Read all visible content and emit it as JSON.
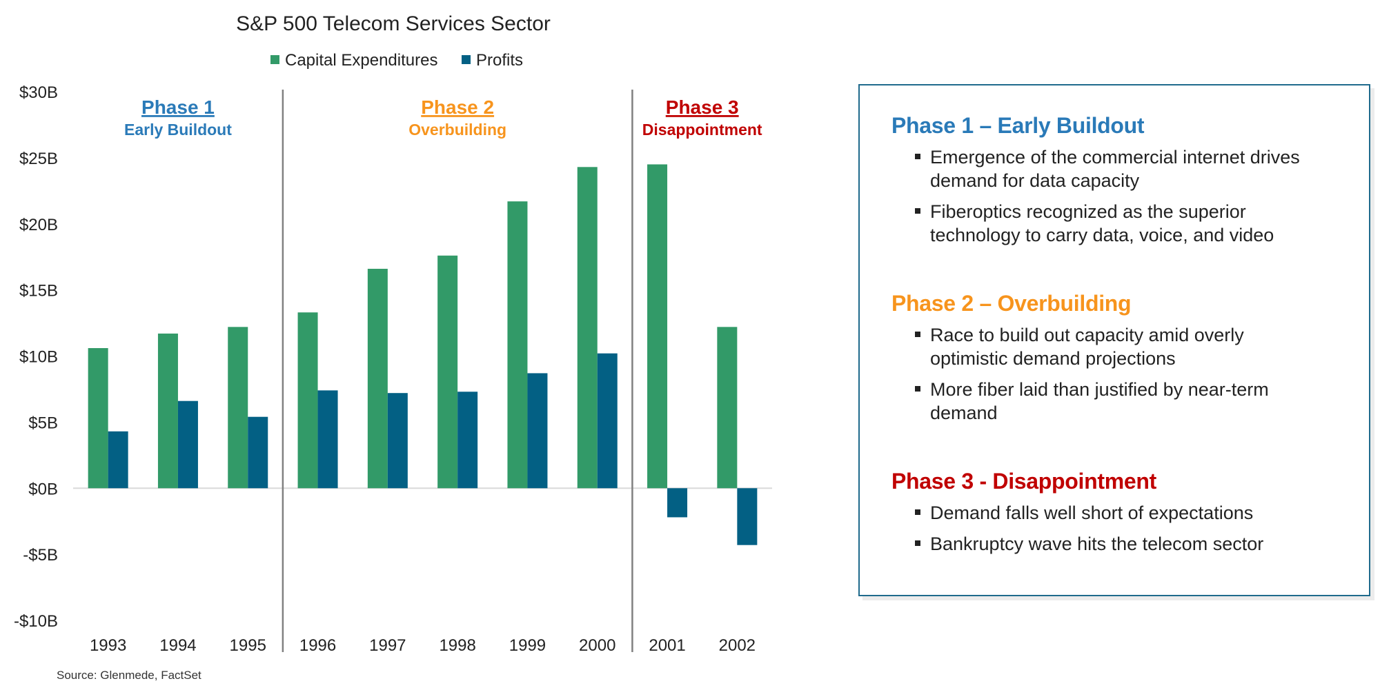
{
  "chart_data": {
    "type": "bar",
    "title": "S&P 500 Telecom Services Sector",
    "categories": [
      "1993",
      "1994",
      "1995",
      "1996",
      "1997",
      "1998",
      "1999",
      "2000",
      "2001",
      "2002"
    ],
    "series": [
      {
        "name": "Capital Expenditures",
        "color": "#329a68",
        "values": [
          10.6,
          11.7,
          12.2,
          13.3,
          16.6,
          17.6,
          21.7,
          24.3,
          24.5,
          12.2
        ]
      },
      {
        "name": "Profits",
        "color": "#036084",
        "values": [
          4.3,
          6.6,
          5.4,
          7.4,
          7.2,
          7.3,
          8.7,
          10.2,
          -2.2,
          -4.3
        ]
      }
    ],
    "ylim": [
      -10,
      30
    ],
    "yticks": [
      30,
      25,
      20,
      15,
      10,
      5,
      0,
      -5,
      -10
    ],
    "ytick_labels": [
      "$30B",
      "$25B",
      "$20B",
      "$15B",
      "$10B",
      "$5B",
      "$0B",
      "-$5B",
      "-$10B"
    ],
    "xlabel": "",
    "ylabel": "",
    "legend": "top",
    "grid": false,
    "phases": [
      {
        "title": "Phase 1",
        "subtitle": "Early Buildout",
        "color": "#2a7ab8",
        "start": 0,
        "end": 3
      },
      {
        "title": "Phase 2",
        "subtitle": "Overbuilding",
        "color": "#f7941d",
        "start": 3,
        "end": 8
      },
      {
        "title": "Phase 3",
        "subtitle": "Disappointment",
        "color": "#c00000",
        "start": 8,
        "end": 10
      }
    ]
  },
  "source": "Source: Glenmede, FactSet",
  "panel": {
    "sections": [
      {
        "heading": "Phase 1 – Early Buildout",
        "color": "#2a7ab8",
        "bullets": [
          "Emergence of the commercial internet drives demand for data capacity",
          "Fiberoptics recognized as the superior technology to carry data, voice, and video"
        ]
      },
      {
        "heading": "Phase 2 – Overbuilding",
        "color": "#f7941d",
        "bullets": [
          "Race to build out capacity amid overly optimistic demand projections",
          "More fiber laid than justified by near-term demand"
        ]
      },
      {
        "heading": "Phase 3 - Disappointment",
        "color": "#c00000",
        "bullets": [
          "Demand falls well short of expectations",
          "Bankruptcy wave hits the telecom sector"
        ]
      }
    ]
  }
}
